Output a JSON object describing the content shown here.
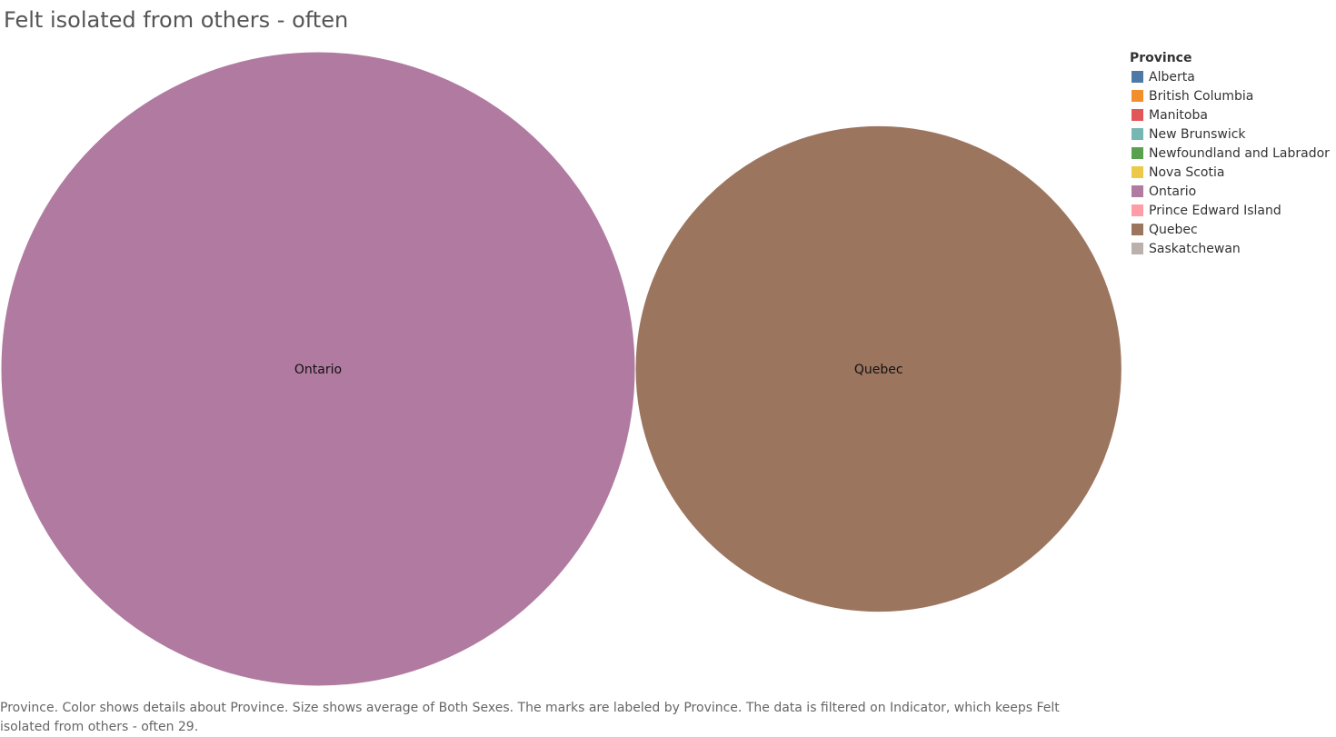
{
  "chart_data": {
    "type": "bubble",
    "title": "Felt isolated from others - often",
    "legend_title": "Province",
    "legend_placement": "top-right",
    "legend": [
      {
        "label": "Alberta",
        "color": "#4e79a7"
      },
      {
        "label": "British Columbia",
        "color": "#f28e2b"
      },
      {
        "label": "Manitoba",
        "color": "#e15759"
      },
      {
        "label": "New Brunswick",
        "color": "#76b7b2"
      },
      {
        "label": "Newfoundland and Labrador",
        "color": "#59a14f"
      },
      {
        "label": "Nova Scotia",
        "color": "#edc948"
      },
      {
        "label": "Ontario",
        "color": "#b07aa1"
      },
      {
        "label": "Prince Edward Island",
        "color": "#ff9da7"
      },
      {
        "label": "Quebec",
        "color": "#9c755f"
      },
      {
        "label": "Saskatchewan",
        "color": "#bab0ac"
      }
    ],
    "bubbles": [
      {
        "label": "Ontario",
        "value": 1.7,
        "color": "#b07aa1"
      },
      {
        "label": "Quebec",
        "value": 1,
        "color": "#9c755f"
      }
    ],
    "size_measure": "average of Both Sexes",
    "caption": "Province.  Color shows details about Province.  Size shows average of Both Sexes.  The marks are labeled by Province. The data is filtered on Indicator, which keeps Felt isolated from others - often 29."
  }
}
